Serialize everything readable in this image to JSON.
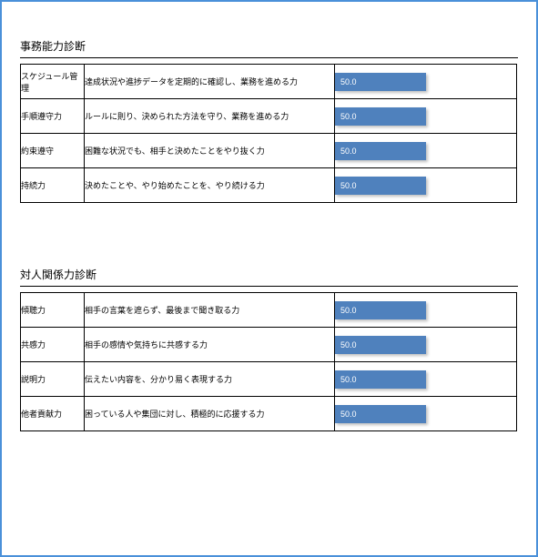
{
  "frame": {
    "border_color": "#4a90d9",
    "background_color": "#ffffff"
  },
  "chart_style": {
    "bar_color": "#4f81bd",
    "bar_text_color": "#ffffff",
    "value_max": 100,
    "value_fontsize": 9,
    "row_border_color": "#000000",
    "name_fontsize": 9,
    "desc_fontsize": 9,
    "title_fontsize": 12,
    "title_underline_color": "#000000"
  },
  "sections": [
    {
      "title": "事務能力診断",
      "rows": [
        {
          "name": "スケジュール管理",
          "desc": "達成状況や進捗データを定期的に確認し、業務を進める力",
          "value": 50.0
        },
        {
          "name": "手順遵守力",
          "desc": "ルールに則り、決められた方法を守り、業務を進める力",
          "value": 50.0
        },
        {
          "name": "約束遵守",
          "desc": "困難な状況でも、相手と決めたことをやり抜く力",
          "value": 50.0
        },
        {
          "name": "持続力",
          "desc": "決めたことや、やり始めたことを、やり続ける力",
          "value": 50.0
        }
      ]
    },
    {
      "title": "対人関係力診断",
      "rows": [
        {
          "name": "傾聴力",
          "desc": "相手の言葉を遮らず、最後まで聞き取る力",
          "value": 50.0
        },
        {
          "name": "共感力",
          "desc": "相手の感情や気持ちに共感する力",
          "value": 50.0
        },
        {
          "name": "説明力",
          "desc": "伝えたい内容を、分かり易く表現する力",
          "value": 50.0
        },
        {
          "name": "他者貢献力",
          "desc": "困っている人や集団に対し、積極的に応援する力",
          "value": 50.0
        }
      ]
    }
  ]
}
